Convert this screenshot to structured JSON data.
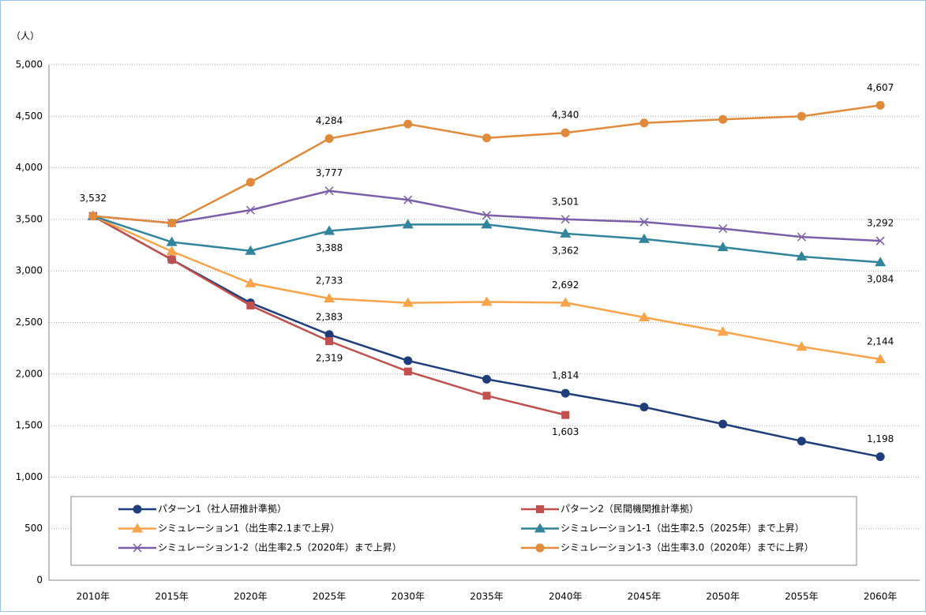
{
  "chart_data": {
    "type": "line",
    "y_unit": "（人）",
    "categories": [
      "2010年",
      "2015年",
      "2020年",
      "2025年",
      "2030年",
      "2035年",
      "2040年",
      "2045年",
      "2050年",
      "2055年",
      "2060年"
    ],
    "ylim": [
      0,
      5000
    ],
    "yticks": [
      0,
      500,
      {
        "value": 1000,
        "label": "1,000"
      },
      {
        "value": 1500,
        "label": "1,500"
      },
      {
        "value": 2000,
        "label": "2,000"
      },
      {
        "value": 2500,
        "label": "2,500"
      },
      {
        "value": 3000,
        "label": "3,000"
      },
      {
        "value": 3500,
        "label": "3,500"
      },
      {
        "value": 4000,
        "label": "4,000"
      },
      {
        "value": 4500,
        "label": "4,500"
      },
      {
        "value": 5000,
        "label": "5,000"
      }
    ],
    "grid": true,
    "series": [
      {
        "name": "パターン1（社人研推計準拠）",
        "color": "#1f3d7a",
        "marker": "circle",
        "values": [
          3532,
          3110,
          2690,
          2383,
          2130,
          1950,
          1814,
          1680,
          1515,
          1350,
          1198
        ],
        "value_labels": [
          "3,532",
          null,
          null,
          "2,383",
          null,
          null,
          "1,814",
          null,
          null,
          null,
          "1,198"
        ]
      },
      {
        "name": "パターン2（民間機関推計準拠）",
        "color": "#c0504d",
        "marker": "square",
        "values": [
          3532,
          3110,
          2665,
          2319,
          2025,
          1790,
          1603,
          null,
          null,
          null,
          null
        ],
        "value_labels": [
          null,
          null,
          null,
          "2,319",
          null,
          null,
          "1,603",
          null,
          null,
          null,
          null
        ]
      },
      {
        "name": "シミュレーション1（出生率2.1まで上昇）",
        "color": "#f9a34b",
        "marker": "triangle",
        "values": [
          3532,
          3190,
          2880,
          2733,
          2690,
          2700,
          2692,
          2550,
          2410,
          2265,
          2144
        ],
        "value_labels": [
          null,
          null,
          null,
          "2,733",
          null,
          null,
          "2,692",
          null,
          null,
          null,
          "2,144"
        ]
      },
      {
        "name": "シミュレーション1-1（出生率2.5（2025年）まで上昇）",
        "color": "#31849b",
        "marker": "triangle",
        "values": [
          3532,
          3280,
          3195,
          3388,
          3450,
          3450,
          3362,
          3310,
          3230,
          3140,
          3084
        ],
        "value_labels": [
          null,
          null,
          null,
          "3,388",
          null,
          null,
          "3,362",
          null,
          null,
          null,
          "3,084"
        ]
      },
      {
        "name": "シミュレーション1-2（出生率2.5（2020年）まで上昇）",
        "color": "#7b5ea7",
        "marker": "x",
        "values": [
          3532,
          3465,
          3590,
          3777,
          3690,
          3540,
          3501,
          3475,
          3410,
          3330,
          3292
        ],
        "value_labels": [
          null,
          null,
          null,
          "3,777",
          null,
          null,
          "3,501",
          null,
          null,
          null,
          "3,292"
        ]
      },
      {
        "name": "シミュレーション1-3（出生率3.0（2020年）までに上昇）",
        "color": "#e08a3c",
        "marker": "circle",
        "values": [
          3532,
          3465,
          3860,
          4284,
          4425,
          4290,
          4340,
          4435,
          4470,
          4500,
          4607
        ],
        "value_labels": [
          null,
          null,
          null,
          "4,284",
          null,
          null,
          "4,340",
          null,
          null,
          null,
          "4,607"
        ]
      }
    ]
  }
}
